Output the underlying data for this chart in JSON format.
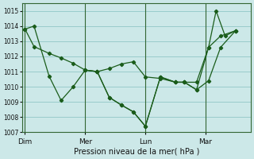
{
  "background_color": "#cce8e8",
  "grid_color": "#99cccc",
  "line_color": "#1a5c1a",
  "marker_color": "#1a5c1a",
  "xlabel": "Pression niveau de la mer( hPa )",
  "ylim": [
    1007,
    1015.5
  ],
  "yticks": [
    1007,
    1008,
    1009,
    1010,
    1011,
    1012,
    1013,
    1014,
    1015
  ],
  "day_labels": [
    "Dim",
    "Mer",
    "Lun",
    "Mar"
  ],
  "day_positions": [
    0.0,
    2.0,
    4.0,
    6.0
  ],
  "vline_positions": [
    0.0,
    2.0,
    4.0,
    6.0
  ],
  "xlim": [
    -0.1,
    7.5
  ],
  "series1_x": [
    0.0,
    0.3,
    0.8,
    1.2,
    1.6,
    2.0,
    2.4,
    2.8,
    3.2,
    3.6,
    4.0,
    4.5,
    5.0,
    5.3,
    5.7,
    6.1,
    6.5,
    7.0
  ],
  "series1_y": [
    1013.8,
    1014.0,
    1010.7,
    1009.1,
    1010.0,
    1011.1,
    1011.0,
    1009.3,
    1008.8,
    1008.35,
    1007.4,
    1010.65,
    1010.3,
    1010.3,
    1009.8,
    1010.4,
    1012.6,
    1013.7
  ],
  "series2_x": [
    0.0,
    0.3,
    0.8,
    1.2,
    1.6,
    2.0,
    2.4,
    2.8,
    3.2,
    3.6,
    4.0,
    4.5,
    5.0,
    5.3,
    5.7,
    6.1,
    6.5,
    7.0
  ],
  "series2_y": [
    1013.8,
    1012.65,
    1012.2,
    1011.9,
    1011.55,
    1011.1,
    1011.0,
    1011.2,
    1011.5,
    1011.65,
    1010.65,
    1010.55,
    1010.3,
    1010.3,
    1010.3,
    1012.6,
    1013.35,
    1013.7
  ],
  "series3_x": [
    2.0,
    2.4,
    2.8,
    3.2,
    3.6,
    4.0,
    4.5,
    5.0,
    5.3,
    5.7,
    6.1,
    6.35,
    6.65,
    7.0
  ],
  "series3_y": [
    1011.1,
    1011.0,
    1009.3,
    1008.8,
    1008.35,
    1007.4,
    1010.65,
    1010.3,
    1010.3,
    1009.8,
    1012.6,
    1015.0,
    1013.35,
    1013.7
  ]
}
